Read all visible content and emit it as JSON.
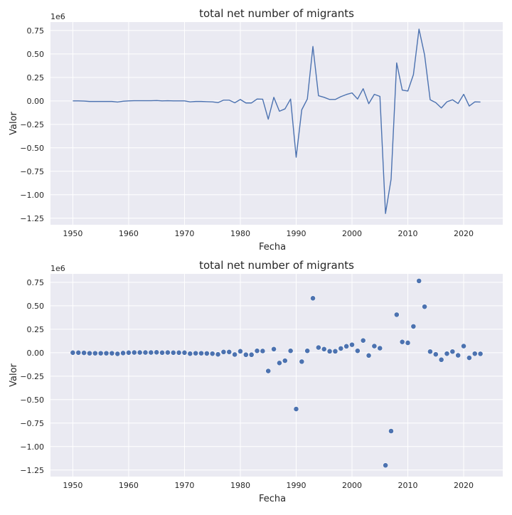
{
  "colors": {
    "plot_background": "#eaeaf2",
    "grid": "#ffffff",
    "series": "#4c72b0",
    "text": "#262626"
  },
  "chart_data": [
    {
      "type": "line",
      "title": "total net number of migrants",
      "xlabel": "Fecha",
      "ylabel": "Valor",
      "y_offset_label": "1e6",
      "xlim": [
        1946,
        2027
      ],
      "ylim": [
        -1.32,
        0.84
      ],
      "x_ticks": [
        1950,
        1960,
        1970,
        1980,
        1990,
        2000,
        2010,
        2020
      ],
      "y_ticks": [
        -1.25,
        -1.0,
        -0.75,
        -0.5,
        -0.25,
        0.0,
        0.25,
        0.5,
        0.75
      ],
      "x_tick_labels": [
        "1950",
        "1960",
        "1970",
        "1980",
        "1990",
        "2000",
        "2010",
        "2020"
      ],
      "y_tick_labels": [
        "−1.25",
        "−1.00",
        "−0.75",
        "−0.50",
        "−0.25",
        "0.00",
        "0.25",
        "0.50",
        "0.75"
      ],
      "grid": true,
      "x": [
        1950,
        1951,
        1952,
        1953,
        1954,
        1955,
        1956,
        1957,
        1958,
        1959,
        1960,
        1961,
        1962,
        1963,
        1964,
        1965,
        1966,
        1967,
        1968,
        1969,
        1970,
        1971,
        1972,
        1973,
        1974,
        1975,
        1976,
        1977,
        1978,
        1979,
        1980,
        1981,
        1982,
        1983,
        1984,
        1985,
        1986,
        1987,
        1988,
        1989,
        1990,
        1991,
        1992,
        1993,
        1994,
        1995,
        1996,
        1997,
        1998,
        1999,
        2000,
        2001,
        2002,
        2003,
        2004,
        2005,
        2006,
        2007,
        2008,
        2009,
        2010,
        2011,
        2012,
        2013,
        2014,
        2015,
        2016,
        2017,
        2018,
        2019,
        2020,
        2021,
        2022,
        2023
      ],
      "y": [
        0.0,
        0.0,
        -0.002,
        -0.006,
        -0.006,
        -0.006,
        -0.006,
        -0.006,
        -0.012,
        -0.004,
        0.0,
        0.002,
        0.002,
        0.002,
        0.002,
        0.004,
        0.0,
        0.002,
        0.0,
        0.0,
        0.0,
        -0.01,
        -0.006,
        -0.006,
        -0.008,
        -0.01,
        -0.018,
        0.008,
        0.008,
        -0.02,
        0.015,
        -0.022,
        -0.022,
        0.02,
        0.018,
        -0.195,
        0.038,
        -0.11,
        -0.085,
        0.02,
        -0.6,
        -0.095,
        0.02,
        0.58,
        0.055,
        0.038,
        0.015,
        0.015,
        0.045,
        0.068,
        0.085,
        0.02,
        0.13,
        -0.03,
        0.07,
        0.048,
        -1.2,
        -0.835,
        0.405,
        0.115,
        0.105,
        0.28,
        0.765,
        0.49,
        0.012,
        -0.018,
        -0.075,
        -0.01,
        0.012,
        -0.028,
        0.07,
        -0.055,
        -0.01,
        -0.012
      ]
    },
    {
      "type": "scatter",
      "title": "total net number of migrants",
      "xlabel": "Fecha",
      "ylabel": "Valor",
      "y_offset_label": "1e6",
      "xlim": [
        1946,
        2027
      ],
      "ylim": [
        -1.32,
        0.84
      ],
      "x_ticks": [
        1950,
        1960,
        1970,
        1980,
        1990,
        2000,
        2010,
        2020
      ],
      "y_ticks": [
        -1.25,
        -1.0,
        -0.75,
        -0.5,
        -0.25,
        0.0,
        0.25,
        0.5,
        0.75
      ],
      "x_tick_labels": [
        "1950",
        "1960",
        "1970",
        "1980",
        "1990",
        "2000",
        "2010",
        "2020"
      ],
      "y_tick_labels": [
        "−1.25",
        "−1.00",
        "−0.75",
        "−0.50",
        "−0.25",
        "0.00",
        "0.25",
        "0.50",
        "0.75"
      ],
      "grid": true,
      "x": [
        1950,
        1951,
        1952,
        1953,
        1954,
        1955,
        1956,
        1957,
        1958,
        1959,
        1960,
        1961,
        1962,
        1963,
        1964,
        1965,
        1966,
        1967,
        1968,
        1969,
        1970,
        1971,
        1972,
        1973,
        1974,
        1975,
        1976,
        1977,
        1978,
        1979,
        1980,
        1981,
        1982,
        1983,
        1984,
        1985,
        1986,
        1987,
        1988,
        1989,
        1990,
        1991,
        1992,
        1993,
        1994,
        1995,
        1996,
        1997,
        1998,
        1999,
        2000,
        2001,
        2002,
        2003,
        2004,
        2005,
        2006,
        2007,
        2008,
        2009,
        2010,
        2011,
        2012,
        2013,
        2014,
        2015,
        2016,
        2017,
        2018,
        2019,
        2020,
        2021,
        2022,
        2023
      ],
      "y": [
        0.0,
        0.0,
        -0.002,
        -0.006,
        -0.006,
        -0.006,
        -0.006,
        -0.006,
        -0.012,
        -0.004,
        0.0,
        0.002,
        0.002,
        0.002,
        0.002,
        0.004,
        0.0,
        0.002,
        0.0,
        0.0,
        0.0,
        -0.01,
        -0.006,
        -0.006,
        -0.008,
        -0.01,
        -0.018,
        0.008,
        0.008,
        -0.02,
        0.015,
        -0.022,
        -0.022,
        0.02,
        0.018,
        -0.195,
        0.038,
        -0.11,
        -0.085,
        0.02,
        -0.6,
        -0.095,
        0.02,
        0.58,
        0.055,
        0.038,
        0.015,
        0.015,
        0.045,
        0.068,
        0.085,
        0.02,
        0.13,
        -0.03,
        0.07,
        0.048,
        -1.2,
        -0.835,
        0.405,
        0.115,
        0.105,
        0.28,
        0.765,
        0.49,
        0.012,
        -0.018,
        -0.075,
        -0.01,
        0.012,
        -0.028,
        0.07,
        -0.055,
        -0.01,
        -0.012
      ]
    }
  ]
}
